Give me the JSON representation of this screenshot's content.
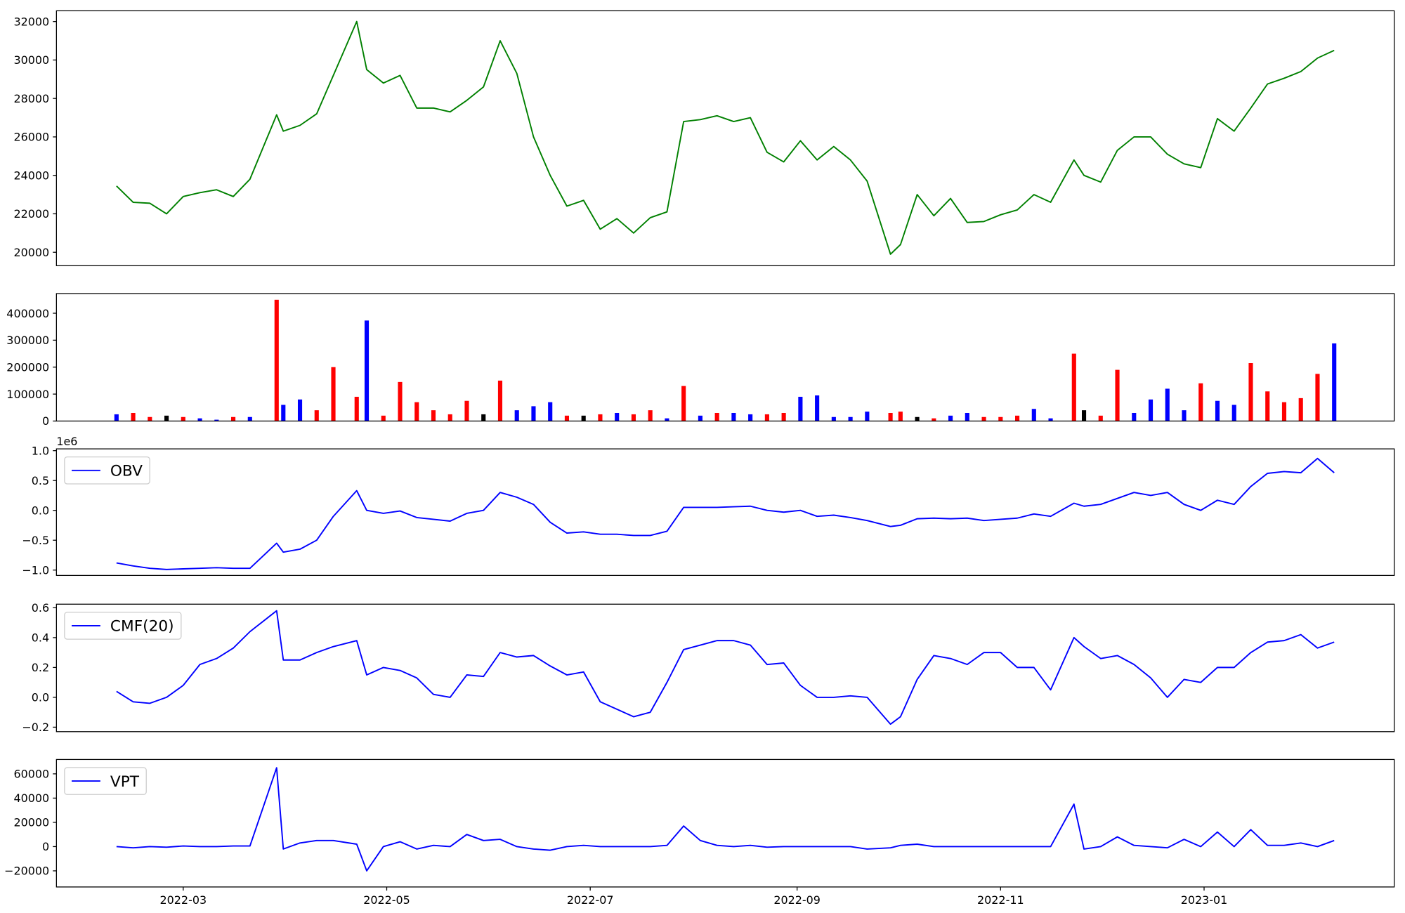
{
  "chart_data": [
    {
      "type": "line",
      "x": [
        "2022-02-09",
        "2022-02-14",
        "2022-02-19",
        "2022-02-24",
        "2022-03-01",
        "2022-03-06",
        "2022-03-11",
        "2022-03-16",
        "2022-03-21",
        "2022-03-29",
        "2022-03-31",
        "2022-04-05",
        "2022-04-10",
        "2022-04-15",
        "2022-04-22",
        "2022-04-25",
        "2022-04-30",
        "2022-05-05",
        "2022-05-10",
        "2022-05-15",
        "2022-05-20",
        "2022-05-25",
        "2022-05-30",
        "2022-06-04",
        "2022-06-09",
        "2022-06-14",
        "2022-06-19",
        "2022-06-24",
        "2022-06-29",
        "2022-07-04",
        "2022-07-09",
        "2022-07-14",
        "2022-07-19",
        "2022-07-24",
        "2022-07-29",
        "2022-08-03",
        "2022-08-08",
        "2022-08-13",
        "2022-08-18",
        "2022-08-23",
        "2022-08-28",
        "2022-09-02",
        "2022-09-07",
        "2022-09-12",
        "2022-09-17",
        "2022-09-22",
        "2022-09-29",
        "2022-10-02",
        "2022-10-07",
        "2022-10-12",
        "2022-10-17",
        "2022-10-22",
        "2022-10-27",
        "2022-11-01",
        "2022-11-06",
        "2022-11-11",
        "2022-11-16",
        "2022-11-23",
        "2022-11-26",
        "2022-12-01",
        "2022-12-06",
        "2022-12-11",
        "2022-12-16",
        "2022-12-21",
        "2022-12-26",
        "2022-12-31",
        "2023-01-05",
        "2023-01-10",
        "2023-01-15",
        "2023-01-20",
        "2023-01-25",
        "2023-01-30",
        "2023-02-04",
        "2023-02-09"
      ],
      "series": [
        {
          "color": "#008000",
          "values": [
            23450,
            22600,
            22550,
            22000,
            22900,
            23100,
            23250,
            22900,
            23800,
            27150,
            26300,
            26600,
            27200,
            29200,
            32000,
            29500,
            28800,
            29200,
            27500,
            27500,
            27300,
            27900,
            28600,
            31000,
            29300,
            26000,
            24000,
            22400,
            22700,
            21200,
            21750,
            21000,
            21800,
            22100,
            26800,
            26900,
            27100,
            26800,
            27000,
            25200,
            24700,
            25800,
            24800,
            25500,
            24800,
            23700,
            19900,
            20400,
            23000,
            21900,
            22800,
            21550,
            21600,
            21950,
            22200,
            23000,
            22600,
            24800,
            24000,
            23650,
            25300,
            26000,
            26000,
            25100,
            24600,
            24400,
            26950,
            26300,
            27500,
            28750,
            29050,
            29400,
            30100,
            30500
          ]
        }
      ],
      "xlim": [
        "2022-01-22",
        "2023-02-27"
      ],
      "ylim": [
        19300,
        32560
      ],
      "yticks": [
        20000,
        22000,
        24000,
        26000,
        28000,
        30000,
        32000
      ]
    },
    {
      "type": "bar",
      "x": [
        "2022-02-09",
        "2022-02-14",
        "2022-02-19",
        "2022-02-24",
        "2022-03-01",
        "2022-03-06",
        "2022-03-11",
        "2022-03-16",
        "2022-03-21",
        "2022-03-29",
        "2022-03-31",
        "2022-04-05",
        "2022-04-10",
        "2022-04-15",
        "2022-04-22",
        "2022-04-25",
        "2022-04-30",
        "2022-05-05",
        "2022-05-10",
        "2022-05-15",
        "2022-05-20",
        "2022-05-25",
        "2022-05-30",
        "2022-06-04",
        "2022-06-09",
        "2022-06-14",
        "2022-06-19",
        "2022-06-24",
        "2022-06-29",
        "2022-07-04",
        "2022-07-09",
        "2022-07-14",
        "2022-07-19",
        "2022-07-24",
        "2022-07-29",
        "2022-08-03",
        "2022-08-08",
        "2022-08-13",
        "2022-08-18",
        "2022-08-23",
        "2022-08-28",
        "2022-09-02",
        "2022-09-07",
        "2022-09-12",
        "2022-09-17",
        "2022-09-22",
        "2022-09-29",
        "2022-10-02",
        "2022-10-07",
        "2022-10-12",
        "2022-10-17",
        "2022-10-22",
        "2022-10-27",
        "2022-11-01",
        "2022-11-06",
        "2022-11-11",
        "2022-11-16",
        "2022-11-23",
        "2022-11-26",
        "2022-12-01",
        "2022-12-06",
        "2022-12-11",
        "2022-12-16",
        "2022-12-21",
        "2022-12-26",
        "2022-12-31",
        "2023-01-05",
        "2023-01-10",
        "2023-01-15",
        "2023-01-20",
        "2023-01-25",
        "2023-01-30",
        "2023-02-04",
        "2023-02-09"
      ],
      "values": [
        25000,
        30000,
        15000,
        20000,
        15000,
        10000,
        5000,
        15000,
        15000,
        450000,
        60000,
        80000,
        40000,
        200000,
        90000,
        373000,
        20000,
        145000,
        70000,
        40000,
        25000,
        75000,
        25000,
        150000,
        40000,
        55000,
        70000,
        20000,
        20000,
        25000,
        30000,
        25000,
        40000,
        10000,
        130000,
        20000,
        30000,
        30000,
        25000,
        25000,
        30000,
        90000,
        95000,
        15000,
        15000,
        35000,
        30000,
        35000,
        15000,
        10000,
        20000,
        30000,
        15000,
        15000,
        20000,
        45000,
        10000,
        250000,
        40000,
        20000,
        190000,
        30000,
        80000,
        120000,
        40000,
        140000,
        75000,
        60000,
        215000,
        110000,
        70000,
        85000,
        175000,
        288000
      ],
      "colors": [
        "blue",
        "red",
        "red",
        "black",
        "red",
        "blue",
        "blue",
        "red",
        "blue",
        "red",
        "blue",
        "blue",
        "red",
        "red",
        "red",
        "blue",
        "red",
        "red",
        "red",
        "red",
        "red",
        "red",
        "black",
        "red",
        "blue",
        "blue",
        "blue",
        "red",
        "black",
        "red",
        "blue",
        "red",
        "red",
        "blue",
        "red",
        "blue",
        "red",
        "blue",
        "blue",
        "red",
        "red",
        "blue",
        "blue",
        "blue",
        "blue",
        "blue",
        "red",
        "red",
        "black",
        "red",
        "blue",
        "blue",
        "red",
        "red",
        "red",
        "blue",
        "blue",
        "red",
        "black",
        "red",
        "red",
        "blue",
        "blue",
        "blue",
        "blue",
        "red",
        "blue",
        "blue",
        "red",
        "red",
        "red",
        "red",
        "red",
        "blue"
      ],
      "xlim": [
        "2022-01-22",
        "2023-02-27"
      ],
      "ylim": [
        0,
        473000
      ],
      "yticks": [
        0,
        100000,
        200000,
        300000,
        400000
      ]
    },
    {
      "type": "line",
      "x": [
        "2022-02-09",
        "2022-02-14",
        "2022-02-19",
        "2022-02-24",
        "2022-03-01",
        "2022-03-06",
        "2022-03-11",
        "2022-03-16",
        "2022-03-21",
        "2022-03-29",
        "2022-03-31",
        "2022-04-05",
        "2022-04-10",
        "2022-04-15",
        "2022-04-22",
        "2022-04-25",
        "2022-04-30",
        "2022-05-05",
        "2022-05-10",
        "2022-05-15",
        "2022-05-20",
        "2022-05-25",
        "2022-05-30",
        "2022-06-04",
        "2022-06-09",
        "2022-06-14",
        "2022-06-19",
        "2022-06-24",
        "2022-06-29",
        "2022-07-04",
        "2022-07-09",
        "2022-07-14",
        "2022-07-19",
        "2022-07-24",
        "2022-07-29",
        "2022-08-03",
        "2022-08-08",
        "2022-08-13",
        "2022-08-18",
        "2022-08-23",
        "2022-08-28",
        "2022-09-02",
        "2022-09-07",
        "2022-09-12",
        "2022-09-17",
        "2022-09-22",
        "2022-09-29",
        "2022-10-02",
        "2022-10-07",
        "2022-10-12",
        "2022-10-17",
        "2022-10-22",
        "2022-10-27",
        "2022-11-01",
        "2022-11-06",
        "2022-11-11",
        "2022-11-16",
        "2022-11-23",
        "2022-11-26",
        "2022-12-01",
        "2022-12-06",
        "2022-12-11",
        "2022-12-16",
        "2022-12-21",
        "2022-12-26",
        "2022-12-31",
        "2023-01-05",
        "2023-01-10",
        "2023-01-15",
        "2023-01-20",
        "2023-01-25",
        "2023-01-30",
        "2023-02-04",
        "2023-02-09"
      ],
      "series": [
        {
          "name": "OBV",
          "color": "#0000ff",
          "values": [
            -0.88,
            -0.93,
            -0.97,
            -0.99,
            -0.98,
            -0.97,
            -0.96,
            -0.97,
            -0.97,
            -0.55,
            -0.7,
            -0.65,
            -0.5,
            -0.1,
            0.33,
            0.0,
            -0.05,
            -0.01,
            -0.12,
            -0.15,
            -0.18,
            -0.05,
            0.0,
            0.3,
            0.22,
            0.1,
            -0.2,
            -0.38,
            -0.36,
            -0.4,
            -0.4,
            -0.42,
            -0.42,
            -0.35,
            0.05,
            0.05,
            0.05,
            0.06,
            0.07,
            0.0,
            -0.03,
            0.0,
            -0.1,
            -0.08,
            -0.12,
            -0.17,
            -0.27,
            -0.25,
            -0.14,
            -0.13,
            -0.14,
            -0.13,
            -0.17,
            -0.15,
            -0.13,
            -0.06,
            -0.1,
            0.12,
            0.07,
            0.1,
            0.2,
            0.3,
            0.25,
            0.3,
            0.1,
            0.0,
            0.17,
            0.1,
            0.4,
            0.62,
            0.65,
            0.63,
            0.87,
            0.63
          ]
        }
      ],
      "xlim": [
        "2022-01-22",
        "2023-02-27"
      ],
      "ylim": [
        -1.09,
        1.03
      ],
      "yticks": [
        {
          "value": -1,
          "label": "−1.0"
        },
        {
          "value": -0.5,
          "label": "−0.5"
        },
        {
          "value": 0,
          "label": "0.0"
        },
        {
          "value": 0.5,
          "label": "0.5"
        },
        {
          "value": 1,
          "label": "1.0"
        }
      ],
      "offset_text": "1e6",
      "legend": "upper left"
    },
    {
      "type": "line",
      "x": [
        "2022-02-09",
        "2022-02-14",
        "2022-02-19",
        "2022-02-24",
        "2022-03-01",
        "2022-03-06",
        "2022-03-11",
        "2022-03-16",
        "2022-03-21",
        "2022-03-29",
        "2022-03-31",
        "2022-04-05",
        "2022-04-10",
        "2022-04-15",
        "2022-04-22",
        "2022-04-25",
        "2022-04-30",
        "2022-05-05",
        "2022-05-10",
        "2022-05-15",
        "2022-05-20",
        "2022-05-25",
        "2022-05-30",
        "2022-06-04",
        "2022-06-09",
        "2022-06-14",
        "2022-06-19",
        "2022-06-24",
        "2022-06-29",
        "2022-07-04",
        "2022-07-09",
        "2022-07-14",
        "2022-07-19",
        "2022-07-24",
        "2022-07-29",
        "2022-08-03",
        "2022-08-08",
        "2022-08-13",
        "2022-08-18",
        "2022-08-23",
        "2022-08-28",
        "2022-09-02",
        "2022-09-07",
        "2022-09-12",
        "2022-09-17",
        "2022-09-22",
        "2022-09-29",
        "2022-10-02",
        "2022-10-07",
        "2022-10-12",
        "2022-10-17",
        "2022-10-22",
        "2022-10-27",
        "2022-11-01",
        "2022-11-06",
        "2022-11-11",
        "2022-11-16",
        "2022-11-23",
        "2022-11-26",
        "2022-12-01",
        "2022-12-06",
        "2022-12-11",
        "2022-12-16",
        "2022-12-21",
        "2022-12-26",
        "2022-12-31",
        "2023-01-05",
        "2023-01-10",
        "2023-01-15",
        "2023-01-20",
        "2023-01-25",
        "2023-01-30",
        "2023-02-04",
        "2023-02-09"
      ],
      "series": [
        {
          "name": "CMF(20)",
          "color": "#0000ff",
          "values": [
            0.04,
            -0.03,
            -0.04,
            0.0,
            0.08,
            0.22,
            0.26,
            0.33,
            0.44,
            0.58,
            0.25,
            0.25,
            0.3,
            0.34,
            0.38,
            0.15,
            0.2,
            0.18,
            0.13,
            0.02,
            0.0,
            0.15,
            0.14,
            0.3,
            0.27,
            0.28,
            0.21,
            0.15,
            0.17,
            -0.03,
            -0.08,
            -0.13,
            -0.1,
            0.1,
            0.32,
            0.35,
            0.38,
            0.38,
            0.35,
            0.22,
            0.23,
            0.08,
            0.0,
            0.0,
            0.01,
            0.0,
            -0.18,
            -0.13,
            0.12,
            0.28,
            0.26,
            0.22,
            0.3,
            0.3,
            0.2,
            0.2,
            0.05,
            0.4,
            0.34,
            0.26,
            0.28,
            0.22,
            0.13,
            0.0,
            0.12,
            0.1,
            0.2,
            0.2,
            0.3,
            0.37,
            0.38,
            0.42,
            0.33,
            0.37
          ]
        }
      ],
      "xlim": [
        "2022-01-22",
        "2023-02-27"
      ],
      "ylim": [
        -0.23,
        0.624
      ],
      "yticks": [
        {
          "value": -0.2,
          "label": "−0.2"
        },
        {
          "value": 0,
          "label": "0.0"
        },
        0.2,
        0.4,
        0.6
      ],
      "legend": "upper left"
    },
    {
      "type": "line",
      "x": [
        "2022-02-09",
        "2022-02-14",
        "2022-02-19",
        "2022-02-24",
        "2022-03-01",
        "2022-03-06",
        "2022-03-11",
        "2022-03-16",
        "2022-03-21",
        "2022-03-29",
        "2022-03-31",
        "2022-04-05",
        "2022-04-10",
        "2022-04-15",
        "2022-04-22",
        "2022-04-25",
        "2022-04-30",
        "2022-05-05",
        "2022-05-10",
        "2022-05-15",
        "2022-05-20",
        "2022-05-25",
        "2022-05-30",
        "2022-06-04",
        "2022-06-09",
        "2022-06-14",
        "2022-06-19",
        "2022-06-24",
        "2022-06-29",
        "2022-07-04",
        "2022-07-09",
        "2022-07-14",
        "2022-07-19",
        "2022-07-24",
        "2022-07-29",
        "2022-08-03",
        "2022-08-08",
        "2022-08-13",
        "2022-08-18",
        "2022-08-23",
        "2022-08-28",
        "2022-09-02",
        "2022-09-07",
        "2022-09-12",
        "2022-09-17",
        "2022-09-22",
        "2022-09-29",
        "2022-10-02",
        "2022-10-07",
        "2022-10-12",
        "2022-10-17",
        "2022-10-22",
        "2022-10-27",
        "2022-11-01",
        "2022-11-06",
        "2022-11-11",
        "2022-11-16",
        "2022-11-23",
        "2022-11-26",
        "2022-12-01",
        "2022-12-06",
        "2022-12-11",
        "2022-12-16",
        "2022-12-21",
        "2022-12-26",
        "2022-12-31",
        "2023-01-05",
        "2023-01-10",
        "2023-01-15",
        "2023-01-20",
        "2023-01-25",
        "2023-01-30",
        "2023-02-04",
        "2023-02-09"
      ],
      "series": [
        {
          "name": "VPT",
          "color": "#0000ff",
          "values": [
            0,
            -1000,
            0,
            -500,
            500,
            0,
            0,
            500,
            500,
            65000,
            -2000,
            3000,
            5000,
            5000,
            2000,
            -20000,
            0,
            4000,
            -2000,
            1000,
            0,
            10000,
            5000,
            6000,
            0,
            -2000,
            -3000,
            0,
            1000,
            0,
            0,
            0,
            0,
            1000,
            17000,
            5000,
            1000,
            0,
            1000,
            -500,
            0,
            0,
            0,
            0,
            0,
            -2000,
            -1000,
            1000,
            2000,
            0,
            0,
            0,
            0,
            0,
            0,
            0,
            0,
            35000,
            -2000,
            0,
            8000,
            1000,
            0,
            -1000,
            6000,
            0,
            12000,
            0,
            14000,
            1000,
            1000,
            3000,
            0,
            5000
          ]
        }
      ],
      "xlim": [
        "2022-01-22",
        "2023-02-27"
      ],
      "ylim": [
        -33300,
        71850
      ],
      "yticks": [
        {
          "value": -20000,
          "label": "−20000"
        },
        0,
        20000,
        40000,
        60000
      ],
      "xticks": [
        {
          "value": "2022-03-01",
          "label": "2022-03"
        },
        {
          "value": "2022-05-01",
          "label": "2022-05"
        },
        {
          "value": "2022-07-01",
          "label": "2022-07"
        },
        {
          "value": "2022-09-01",
          "label": "2022-09"
        },
        {
          "value": "2022-11-01",
          "label": "2022-11"
        },
        {
          "value": "2023-01-01",
          "label": "2023-01"
        }
      ],
      "legend": "upper left"
    }
  ]
}
